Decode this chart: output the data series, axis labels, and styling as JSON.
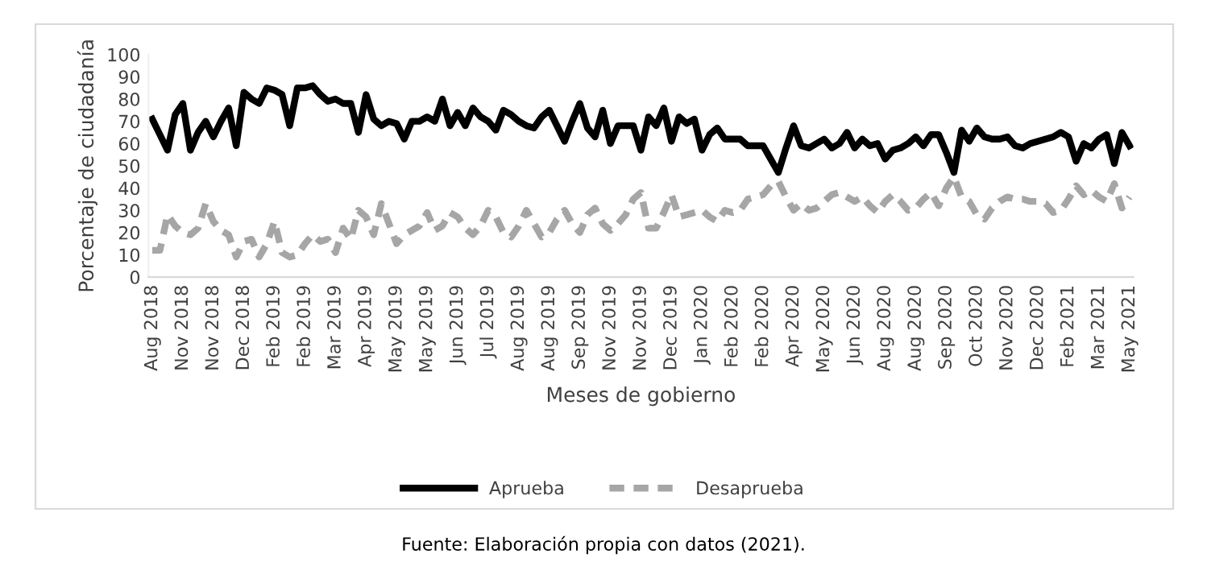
{
  "chart_data": {
    "type": "line",
    "ylabel": "Porcentaje de ciudadanía",
    "xlabel": "Meses de gobierno",
    "annotations": [
      "Fuente: Elaboración propia con datos (2021)."
    ],
    "categories": [
      "Aug 2018",
      null,
      null,
      null,
      "Nov 2018",
      null,
      null,
      null,
      "Nov 2018",
      null,
      null,
      null,
      "Dec 2018",
      null,
      null,
      null,
      "Feb 2019",
      null,
      null,
      null,
      "Feb 2019",
      null,
      null,
      null,
      "Mar 2019",
      null,
      null,
      null,
      "Apr 2019",
      null,
      null,
      null,
      "May 2019",
      null,
      null,
      null,
      "May 2019",
      null,
      null,
      null,
      "Jun 2019",
      null,
      null,
      null,
      "Jul 2019",
      null,
      null,
      null,
      "Aug 2019",
      null,
      null,
      null,
      "Aug 2019",
      null,
      null,
      null,
      "Sep 2019",
      null,
      null,
      null,
      "Nov 2019",
      null,
      null,
      null,
      "Nov 2019",
      null,
      null,
      null,
      "Dec 2019",
      null,
      null,
      null,
      "Jan 2020",
      null,
      null,
      null,
      "Feb 2020",
      null,
      null,
      null,
      "Feb 2020",
      null,
      null,
      null,
      "Apr 2020",
      null,
      null,
      null,
      "May 2020",
      null,
      null,
      null,
      "Jun 2020",
      null,
      null,
      null,
      "Aug 2020",
      null,
      null,
      null,
      "Aug 2020",
      null,
      null,
      null,
      "Sep 2020",
      null,
      null,
      null,
      "Oct 2020",
      null,
      null,
      null,
      "Nov 2020",
      null,
      null,
      null,
      "Dec 2020",
      null,
      null,
      null,
      "Feb 2021",
      null,
      null,
      null,
      "Mar 2021",
      null,
      null,
      null,
      "May 2021"
    ],
    "series": [
      {
        "name": "Aprueba",
        "color": "#000000",
        "line_style": "solid",
        "values": [
          71,
          64,
          57,
          73,
          78,
          57,
          65,
          70,
          63,
          70,
          76,
          59,
          83,
          80,
          78,
          85,
          84,
          82,
          68,
          85,
          85,
          86,
          82,
          79,
          80,
          78,
          78,
          65,
          82,
          71,
          68,
          70,
          69,
          62,
          70,
          70,
          72,
          70,
          80,
          68,
          74,
          68,
          76,
          72,
          70,
          66,
          75,
          73,
          70,
          68,
          67,
          72,
          75,
          68,
          61,
          70,
          78,
          67,
          63,
          75,
          60,
          68,
          68,
          68,
          57,
          72,
          68,
          76,
          61,
          72,
          69,
          71,
          57,
          64,
          67,
          62,
          62,
          62,
          59,
          59,
          59,
          53,
          47,
          58,
          68,
          59,
          58,
          60,
          62,
          58,
          60,
          65,
          58,
          62,
          59,
          60,
          53,
          57,
          58,
          60,
          63,
          59,
          64,
          64,
          56,
          47,
          66,
          61,
          67,
          63,
          62,
          62,
          63,
          59,
          58,
          60,
          61,
          62,
          63,
          65,
          63,
          52,
          60,
          58,
          62,
          64,
          51,
          65,
          59
        ]
      },
      {
        "name": "Desaprueba",
        "color": "#a6a6a6",
        "line_style": "dashed",
        "values": [
          12,
          12,
          28,
          23,
          20,
          19,
          22,
          33,
          25,
          21,
          19,
          9,
          16,
          17,
          9,
          15,
          25,
          11,
          9,
          10,
          15,
          19,
          16,
          17,
          11,
          22,
          17,
          30,
          27,
          19,
          33,
          24,
          15,
          19,
          21,
          23,
          29,
          21,
          23,
          29,
          27,
          22,
          19,
          23,
          30,
          27,
          20,
          18,
          23,
          30,
          24,
          18,
          20,
          26,
          30,
          24,
          20,
          28,
          31,
          24,
          21,
          24,
          28,
          35,
          38,
          22,
          22,
          29,
          37,
          27,
          28,
          29,
          30,
          27,
          25,
          30,
          29,
          30,
          35,
          36,
          37,
          41,
          43,
          36,
          30,
          33,
          30,
          31,
          34,
          37,
          38,
          36,
          34,
          36,
          32,
          29,
          34,
          37,
          34,
          30,
          31,
          35,
          38,
          32,
          40,
          45,
          36,
          34,
          28,
          26,
          31,
          34,
          36,
          35,
          35,
          34,
          34,
          33,
          29,
          30,
          35,
          41,
          37,
          39,
          36,
          34,
          42,
          31,
          36
        ]
      }
    ],
    "ylim": [
      0,
      100
    ],
    "yticks": [
      0,
      10,
      20,
      30,
      40,
      50,
      60,
      70,
      80,
      90,
      100
    ],
    "grid": false,
    "legend": "bottom",
    "marker": "none"
  }
}
